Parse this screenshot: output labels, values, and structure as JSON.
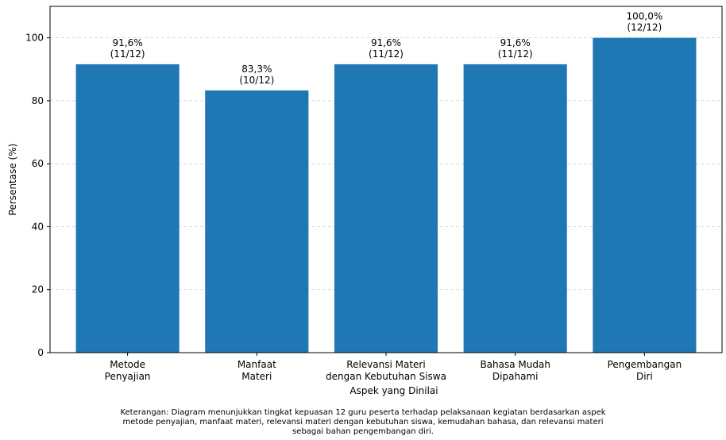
{
  "chart_data": {
    "type": "bar",
    "categories": [
      [
        "Metode",
        "Penyajian"
      ],
      [
        "Manfaat",
        "Materi"
      ],
      [
        "Relevansi Materi",
        "dengan Kebutuhan Siswa"
      ],
      [
        "Bahasa Mudah",
        "Dipahami"
      ],
      [
        "Pengembangan",
        "Diri"
      ]
    ],
    "values": [
      91.6,
      83.3,
      91.6,
      91.6,
      100.0
    ],
    "value_labels": [
      "91,6%",
      "83,3%",
      "91,6%",
      "91,6%",
      "100,0%"
    ],
    "count_labels": [
      "(11/12)",
      "(10/12)",
      "(11/12)",
      "(11/12)",
      "(12/12)"
    ],
    "xlabel": "Aspek yang Dinilai",
    "ylabel": "Persentase (%)",
    "ylim": [
      0,
      110
    ],
    "yticks": [
      0,
      20,
      40,
      60,
      80,
      100
    ],
    "grid": "horizontal dashed",
    "bar_color": "#1f77b4"
  },
  "caption": {
    "line1": "Keterangan: Diagram menunjukkan tingkat kepuasan 12 guru peserta terhadap pelaksanaan kegiatan berdasarkan aspek",
    "line2": "metode penyajian, manfaat materi, relevansi materi dengan kebutuhan siswa, kemudahan bahasa, dan relevansi materi",
    "line3": "sebagai bahan pengembangan diri."
  }
}
